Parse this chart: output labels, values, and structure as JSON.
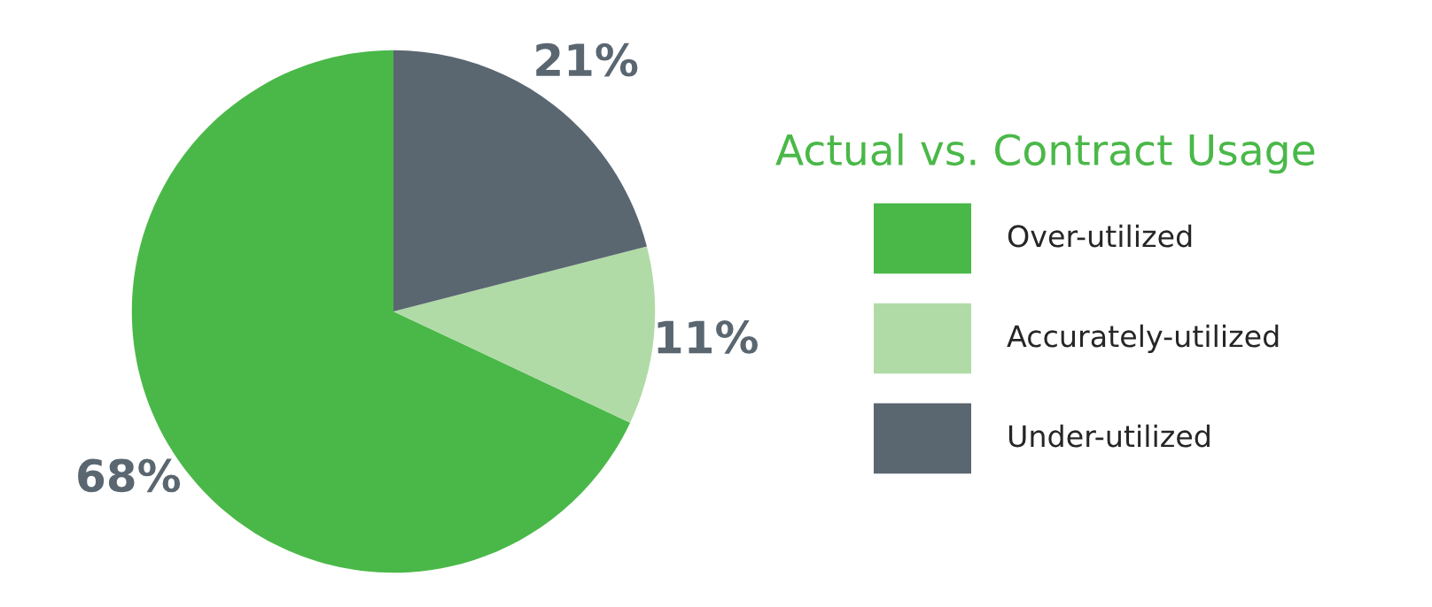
{
  "chart_data": {
    "type": "pie",
    "legend_title": "Actual vs. Contract Usage",
    "categories": [
      "Over-utilized",
      "Accurately-utilized",
      "Under-utilized"
    ],
    "values": [
      68,
      11,
      21
    ],
    "colors": [
      "#4ab848",
      "#b1dba6",
      "#5a6670"
    ],
    "value_labels": [
      "68%",
      "11%",
      "21%"
    ],
    "legend": "right"
  }
}
